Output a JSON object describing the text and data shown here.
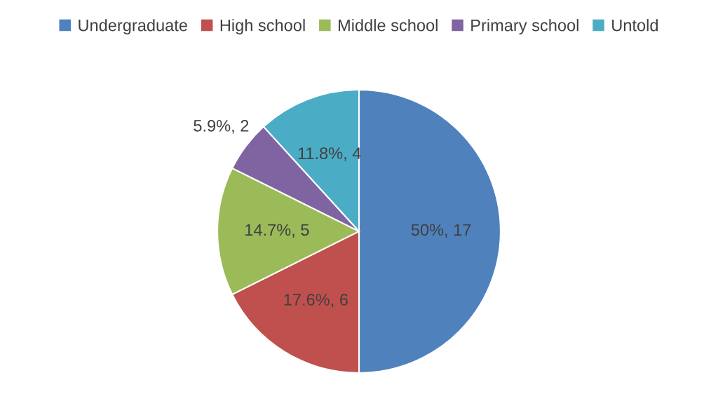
{
  "chart_data": {
    "type": "pie",
    "categories": [
      "Undergraduate",
      "High school",
      "Middle school",
      "Primary school",
      "Untold"
    ],
    "values": [
      17,
      6,
      5,
      2,
      4
    ],
    "colors": [
      "#4f81bd",
      "#c0504d",
      "#9bbb59",
      "#8064a2",
      "#4bacc6"
    ],
    "value_labels": [
      "50%, 17",
      "17.6%, 6",
      "14.7%, 5",
      "5.9%, 2",
      "11.8%, 4"
    ],
    "legend": "top"
  }
}
